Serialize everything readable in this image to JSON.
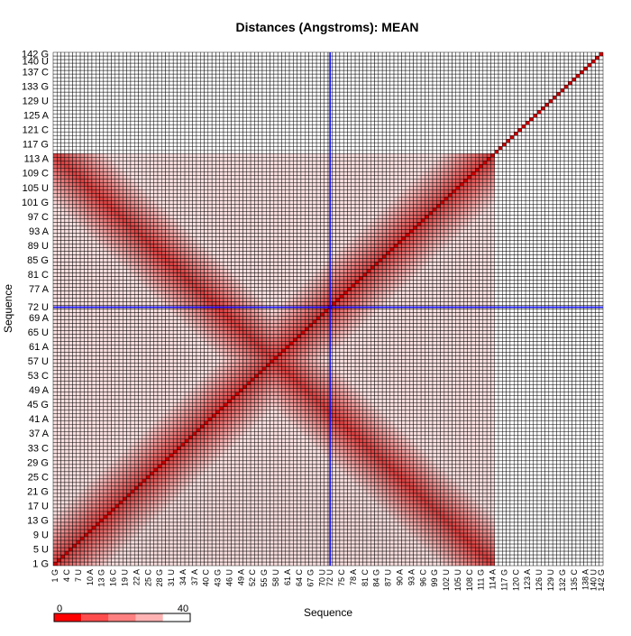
{
  "chart_data": {
    "type": "heatmap",
    "title": "Distances (Angstroms):  MEAN",
    "xlabel": "Sequence",
    "ylabel": "Sequence",
    "n_positions": 142,
    "colored_range": [
      1,
      114
    ],
    "highlight": {
      "index": 72,
      "label": "72 U",
      "color": "#0000ff"
    },
    "legend": {
      "min_label": "0",
      "max_label": "40",
      "colors": [
        "#ff0000",
        "#ff4d4d",
        "#ff8080",
        "#ffb3b3",
        "#ffffff"
      ]
    },
    "color_scale": {
      "low": "#cc0000",
      "high": "#ffffff"
    },
    "y_tick_labels": [
      "1 G",
      "5 U",
      "9 U",
      "13 G",
      "17 U",
      "21 G",
      "25 C",
      "29 G",
      "33 C",
      "37 A",
      "41 A",
      "45 G",
      "49 A",
      "53 C",
      "57 U",
      "61 A",
      "65 U",
      "69 A",
      "72 U",
      "77 A",
      "81 C",
      "85 G",
      "89 U",
      "93 A",
      "97 C",
      "101 G",
      "105 U",
      "109 C",
      "113 A",
      "117 G",
      "121 C",
      "125 A",
      "129 U",
      "133 G",
      "137 C",
      "140 U",
      "142 G"
    ],
    "x_tick_labels": [
      "1 G",
      "4 C",
      "7 U",
      "10 A",
      "13 G",
      "16 C",
      "19 U",
      "22 A",
      "25 C",
      "28 G",
      "31 U",
      "34 A",
      "37 A",
      "40 C",
      "43 G",
      "46 U",
      "49 A",
      "52 C",
      "55 G",
      "58 U",
      "61 A",
      "64 C",
      "67 G",
      "70 U",
      "72 U",
      "75 C",
      "78 A",
      "81 C",
      "84 G",
      "87 U",
      "90 A",
      "93 A",
      "96 C",
      "99 G",
      "102 U",
      "105 U",
      "108 C",
      "111 G",
      "114 A",
      "117 G",
      "120 C",
      "123 A",
      "126 U",
      "129 U",
      "132 G",
      "135 C",
      "138 A",
      "140 U",
      "142 G"
    ]
  }
}
